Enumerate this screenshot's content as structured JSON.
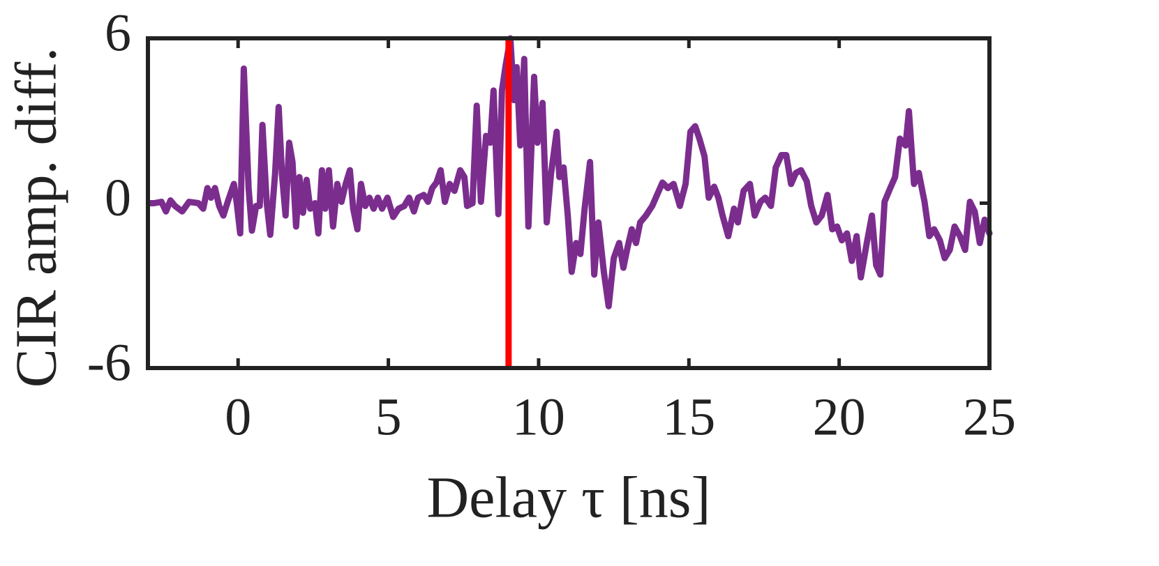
{
  "chart_data": {
    "type": "line",
    "xlabel": "Delay τ [ns]",
    "ylabel": "CIR amp. diff.",
    "xlim": [
      -3,
      25
    ],
    "ylim": [
      -6,
      6
    ],
    "xticks": [
      0,
      5,
      10,
      15,
      20,
      25
    ],
    "yticks": [
      -6,
      0,
      6
    ],
    "vline": {
      "x": 9,
      "color": "#ff0000"
    },
    "x": [
      -2.97,
      -2.8,
      -2.55,
      -2.4,
      -2.25,
      -2.1,
      -1.86,
      -1.63,
      -1.32,
      -1.16,
      -1.02,
      -0.9,
      -0.77,
      -0.63,
      -0.49,
      -0.33,
      -0.14,
      -0.05,
      0.07,
      0.19,
      0.35,
      0.46,
      0.6,
      0.72,
      0.81,
      0.95,
      1.07,
      1.23,
      1.35,
      1.46,
      1.58,
      1.7,
      1.81,
      1.93,
      2.04,
      2.16,
      2.28,
      2.4,
      2.56,
      2.67,
      2.79,
      2.9,
      3.02,
      3.16,
      3.3,
      3.44,
      3.58,
      3.72,
      3.83,
      3.97,
      4.09,
      4.23,
      4.37,
      4.51,
      4.65,
      4.79,
      4.97,
      5.16,
      5.34,
      5.53,
      5.69,
      5.85,
      5.99,
      6.18,
      6.32,
      6.46,
      6.6,
      6.74,
      6.88,
      7.04,
      7.2,
      7.39,
      7.53,
      7.62,
      7.8,
      7.94,
      8.08,
      8.25,
      8.39,
      8.5,
      8.66,
      8.78,
      8.9,
      9.06,
      9.18,
      9.27,
      9.39,
      9.52,
      9.66,
      9.85,
      9.96,
      10.13,
      10.27,
      10.41,
      10.6,
      10.69,
      10.83,
      10.97,
      11.1,
      11.25,
      11.39,
      11.53,
      11.71,
      11.85,
      11.99,
      12.17,
      12.33,
      12.5,
      12.68,
      12.82,
      12.96,
      13.1,
      13.24,
      13.38,
      13.57,
      13.78,
      13.94,
      14.12,
      14.3,
      14.49,
      14.7,
      14.89,
      15.05,
      15.21,
      15.35,
      15.52,
      15.66,
      15.84,
      15.98,
      16.12,
      16.31,
      16.5,
      16.63,
      16.82,
      17.03,
      17.19,
      17.38,
      17.54,
      17.73,
      17.89,
      18.08,
      18.24,
      18.4,
      18.56,
      18.73,
      18.92,
      19.07,
      19.24,
      19.42,
      19.61,
      19.77,
      19.93,
      20.09,
      20.26,
      20.42,
      20.58,
      20.72,
      20.91,
      21.09,
      21.23,
      21.37,
      21.51,
      21.7,
      21.86,
      22.02,
      22.21,
      22.32,
      22.49,
      22.65,
      22.84,
      23.0,
      23.16,
      23.35,
      23.51,
      23.68,
      23.84,
      24.02,
      24.19,
      24.35,
      24.51,
      24.68,
      24.84,
      25
    ],
    "series": [
      {
        "color": "#7b2d8e",
        "values": [
          0,
          0,
          0.05,
          -0.3,
          0.1,
          -0.1,
          -0.3,
          0.05,
          0,
          -0.2,
          0.55,
          0.2,
          0.55,
          -0.1,
          -0.45,
          0.1,
          0.7,
          0.05,
          -1.1,
          4.9,
          0.55,
          -1.0,
          -0.1,
          -0.1,
          2.85,
          0.05,
          -1.15,
          1.05,
          3.5,
          1.05,
          -0.45,
          2.2,
          1.5,
          -0.85,
          0.95,
          -0.35,
          0.85,
          -0.2,
          0,
          -1.1,
          1.2,
          -0.2,
          1.2,
          -0.85,
          0.7,
          0.05,
          0.7,
          1.2,
          -0.2,
          -0.95,
          0.7,
          -0.1,
          0.2,
          -0.2,
          0.2,
          -0.2,
          0.2,
          -0.5,
          -0.2,
          -0.1,
          0.2,
          -0.3,
          0.2,
          0.3,
          0.05,
          0.55,
          0.75,
          1.2,
          0.05,
          0.7,
          0.45,
          1.2,
          0.95,
          -0.1,
          0,
          3.55,
          0.05,
          2.45,
          2.2,
          4.1,
          -0.4,
          4.1,
          5.0,
          6,
          3.75,
          4.95,
          2.1,
          5.25,
          -0.85,
          4.6,
          2.2,
          3.65,
          -0.7,
          1.05,
          2.6,
          0.95,
          1.3,
          -0.45,
          -2.5,
          -1.45,
          -1.85,
          -0.2,
          1.5,
          -2.6,
          -0.7,
          -2.5,
          -3.75,
          -2.0,
          -1.45,
          -2.35,
          -1.6,
          -0.95,
          -1.45,
          -0.7,
          -0.45,
          -0.1,
          0.3,
          0.75,
          0.55,
          0.7,
          -0.1,
          0.7,
          2.6,
          2.8,
          2.35,
          1.7,
          0.2,
          0.6,
          0.2,
          -0.45,
          -1.2,
          -0.2,
          -0.7,
          0.45,
          0.7,
          -0.45,
          0.05,
          0.2,
          -0.1,
          1.3,
          1.75,
          1.75,
          0.7,
          1.1,
          1.2,
          0.8,
          -0.1,
          -0.7,
          -0.45,
          0.3,
          -0.95,
          -0.85,
          -1.35,
          -1.1,
          -2.1,
          -1.2,
          -2.7,
          -1.5,
          -0.45,
          -2.25,
          -2.6,
          0.05,
          0.55,
          0.95,
          2.35,
          2.1,
          3.35,
          0.7,
          1.1,
          0.05,
          -1.2,
          -0.95,
          -1.35,
          -2.0,
          -1.7,
          -0.85,
          -1.2,
          -1.7,
          0.05,
          -0.3,
          -1.45,
          -0.6,
          -1.1
        ]
      }
    ]
  }
}
